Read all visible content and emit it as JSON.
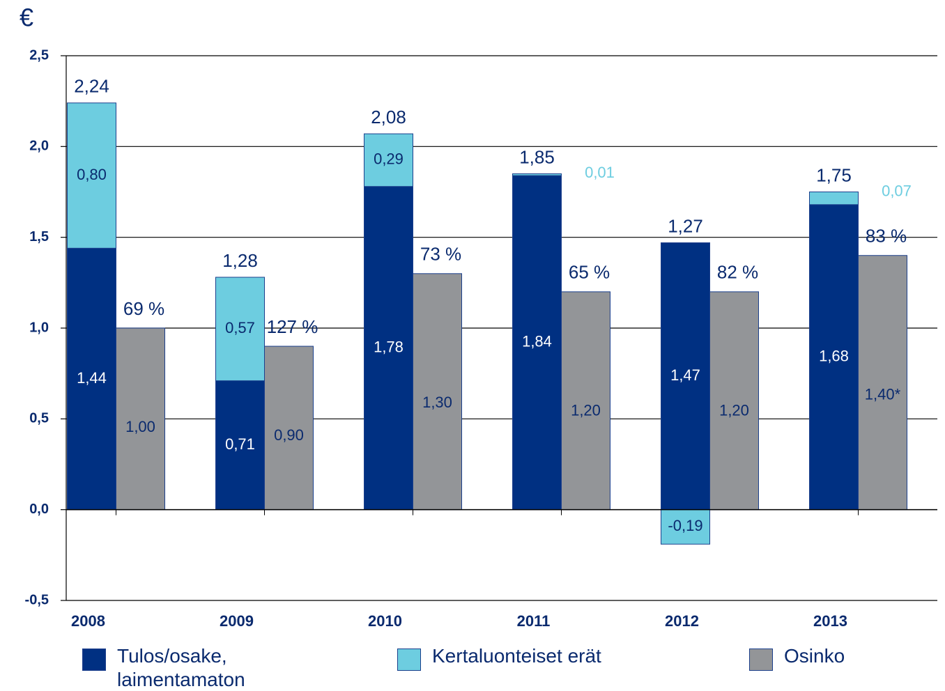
{
  "chart_data": {
    "type": "bar",
    "y_label": "€",
    "categories": [
      "2008",
      "2009",
      "2010",
      "2011",
      "2012",
      "2013"
    ],
    "series": [
      {
        "name": "Tulos/osake, laimentamaton",
        "color": "#003082",
        "values": [
          1.44,
          0.71,
          1.78,
          1.84,
          1.47,
          1.68
        ],
        "value_labels": [
          "1,44",
          "0,71",
          "1,78",
          "1,84",
          "1,47",
          "1,68"
        ]
      },
      {
        "name": "Kertaluonteiset erät",
        "color": "#6dcde0",
        "values": [
          0.8,
          0.57,
          0.29,
          0.01,
          -0.19,
          0.07
        ],
        "value_labels": [
          "0,80",
          "0,57",
          "0,29",
          "0,01",
          "-0,19",
          "0,07"
        ]
      },
      {
        "name": "Osinko",
        "color": "#939598",
        "values": [
          1.0,
          0.9,
          1.3,
          1.2,
          1.2,
          1.4
        ],
        "value_labels": [
          "1,00",
          "0,90",
          "1,30",
          "1,20",
          "1,20",
          "1,40*"
        ]
      }
    ],
    "total_labels": [
      "2,24",
      "1,28",
      "2,08",
      "1,85",
      "1,27",
      "1,75"
    ],
    "payout_labels": [
      "69 %",
      "127 %",
      "73 %",
      "65 %",
      "82 %",
      "83 %"
    ],
    "ylim": [
      -0.5,
      2.5
    ],
    "yticks": [
      {
        "value": -0.5,
        "label": "-0,5"
      },
      {
        "value": 0,
        "label": "0,0"
      },
      {
        "value": 0.5,
        "label": "0,5"
      },
      {
        "value": 1,
        "label": "1,0"
      },
      {
        "value": 1.5,
        "label": "1,5"
      },
      {
        "value": 2,
        "label": "2,0"
      },
      {
        "value": 2.5,
        "label": "2,5"
      }
    ],
    "grid": true
  }
}
